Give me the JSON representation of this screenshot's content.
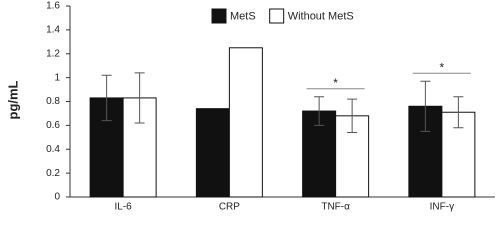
{
  "chart_data": {
    "type": "bar",
    "y_label": "pg/mL",
    "categories": [
      "IL-6",
      "CRP",
      "TNF-α",
      "INF-γ"
    ],
    "series": [
      {
        "name": "MetS",
        "color": "#111111",
        "values": [
          0.83,
          0.74,
          0.72,
          0.76
        ],
        "errors": [
          0.19,
          null,
          0.12,
          0.21
        ]
      },
      {
        "name": "Without MetS",
        "color": "#ffffff",
        "values": [
          0.83,
          1.25,
          0.68,
          0.71
        ],
        "errors": [
          0.21,
          null,
          0.14,
          0.13
        ]
      }
    ],
    "ylim": [
      0,
      1.6
    ],
    "yticks": [
      0,
      0.2,
      0.4,
      0.6,
      0.8,
      1,
      1.2,
      1.4,
      1.6
    ],
    "annotations": [
      {
        "text": "*",
        "category": "TNF-α"
      },
      {
        "text": "*",
        "category": "INF-γ"
      }
    ],
    "legend": "top",
    "grid": false
  }
}
